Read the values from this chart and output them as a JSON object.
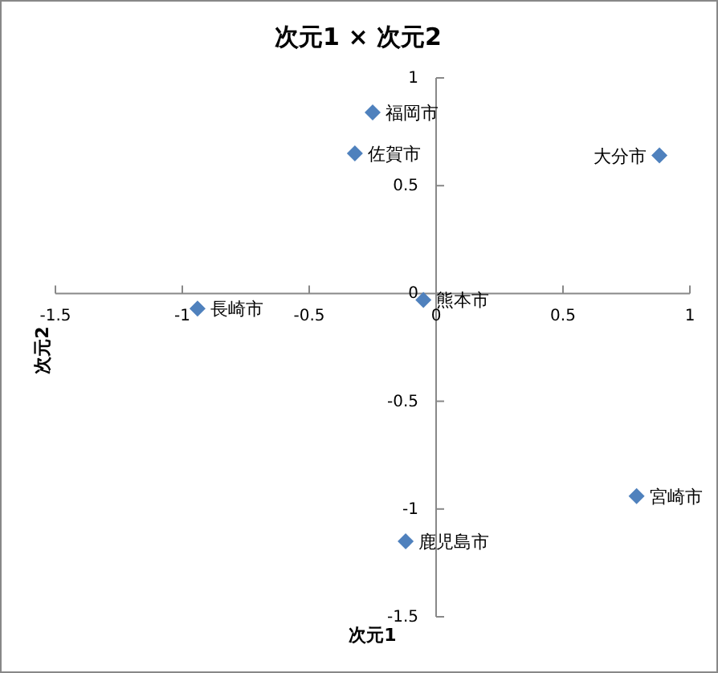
{
  "chart_data": {
    "type": "scatter",
    "title": "次元1 × 次元2",
    "xlabel": "次元1",
    "ylabel": "次元2",
    "marker": "diamond",
    "grid": false,
    "series": [
      {
        "color": "#4f81bd",
        "x": [
          -0.25,
          -0.32,
          0.88,
          -0.05,
          -0.94,
          0.79,
          -0.12
        ],
        "values": [
          0.84,
          0.65,
          0.64,
          -0.03,
          -0.07,
          -0.94,
          -1.15
        ]
      }
    ],
    "annotations": [
      {
        "text": "福岡市",
        "x": -0.25,
        "y": 0.84
      },
      {
        "text": "佐賀市",
        "x": -0.32,
        "y": 0.65
      },
      {
        "text": "大分市",
        "x": 0.88,
        "y": 0.64
      },
      {
        "text": "熊本市",
        "x": -0.05,
        "y": -0.03
      },
      {
        "text": "長崎市",
        "x": -0.94,
        "y": -0.07
      },
      {
        "text": "宮崎市",
        "x": 0.79,
        "y": -0.94
      },
      {
        "text": "鹿児島市",
        "x": -0.12,
        "y": -1.15
      }
    ],
    "xlim": [
      -1.5,
      1
    ],
    "xticks": [
      -1.5,
      -1,
      -0.5,
      0,
      0.5,
      1
    ],
    "ylim": [
      -1.5,
      1
    ],
    "yticks": [
      -1.5,
      -1,
      -0.5,
      0,
      0.5,
      1
    ]
  }
}
